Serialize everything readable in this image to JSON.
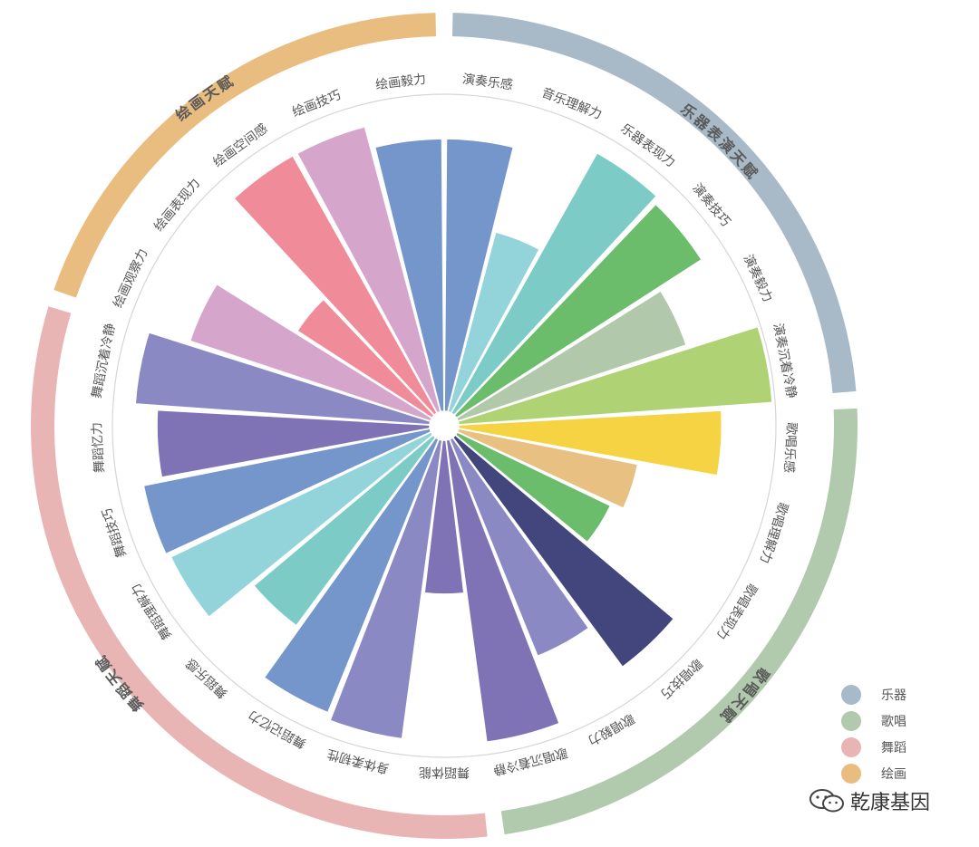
{
  "chart_data": {
    "type": "polar-bar",
    "ylim": [
      0,
      100
    ],
    "categories": [
      "演奏乐感",
      "音乐理解力",
      "乐器表现力",
      "演奏技巧",
      "演奏毅力",
      "演奏沉着冷静",
      "歌唱乐感",
      "歌唱理解力",
      "歌唱表现力",
      "歌唱技巧",
      "歌唱毅力",
      "歌唱沉着冷静",
      "舞蹈体能",
      "身体柔韧性",
      "舞蹈记忆力",
      "舞蹈乐感",
      "舞蹈理解力",
      "舞蹈技巧",
      "舞蹈忆力",
      "舞蹈沉着冷静",
      "绘画观察力",
      "绘画表现力",
      "绘画空间感",
      "绘画技巧",
      "绘画毅力"
    ],
    "values": [
      85,
      58,
      93,
      91,
      75,
      98,
      82,
      57,
      53,
      89,
      73,
      95,
      48,
      94,
      92,
      73,
      90,
      91,
      85,
      92,
      79,
      50,
      92,
      92,
      85
    ],
    "bar_colors": [
      "#7596cb",
      "#92d4da",
      "#7ccbc6",
      "#6bbd6c",
      "#b2c8aa",
      "#afd374",
      "#f5d343",
      "#e8c182",
      "#6bbd6c",
      "#43467c",
      "#8b89c4",
      "#7f73b6",
      "#7f73b6",
      "#8b89c4",
      "#7596cb",
      "#7ccbc6",
      "#92d4da",
      "#7596cb",
      "#7f73b6",
      "#8b89c4",
      "#d5a5cc",
      "#f08c9a",
      "#f08c9a",
      "#d5a5cc",
      "#7596cb"
    ],
    "groups": [
      {
        "name": "乐器表演天赋",
        "legend": "乐器",
        "color": "#a8b9c7",
        "start": 0,
        "end": 6
      },
      {
        "name": "歌唱天赋",
        "legend": "歌唱",
        "color": "#b1c9ad",
        "start": 6,
        "end": 12
      },
      {
        "name": "舞蹈天赋",
        "legend": "舞蹈",
        "color": "#e8b5b4",
        "start": 12,
        "end": 20
      },
      {
        "name": "绘画天赋",
        "legend": "绘画",
        "color": "#e9bc7f",
        "start": 20,
        "end": 25
      }
    ],
    "legend_placement": "bottom-right"
  },
  "watermark": {
    "text": "乾康基因"
  }
}
